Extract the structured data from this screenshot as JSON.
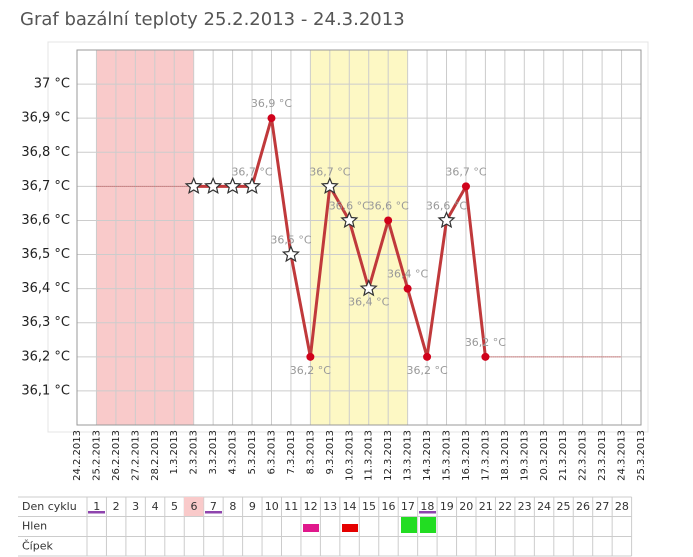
{
  "chart_data": {
    "type": "line",
    "title": "Graf bazální teploty 25.2.2013 - 24.3.2013",
    "categories": [
      "24.2.2013",
      "25.2.2013",
      "26.2.2013",
      "27.2.2013",
      "28.2.2013",
      "1.3.2013",
      "2.3.2013",
      "3.3.2013",
      "4.3.2013",
      "5.3.2013",
      "6.3.2013",
      "7.3.2013",
      "8.3.2013",
      "9.3.2013",
      "10.3.2013",
      "11.3.2013",
      "12.3.2013",
      "13.3.2013",
      "14.3.2013",
      "15.3.2013",
      "16.3.2013",
      "17.3.2013",
      "18.3.2013",
      "19.3.2013",
      "20.3.2013",
      "21.3.2013",
      "22.3.2013",
      "23.3.2013",
      "24.3.2013",
      "25.3.2013"
    ],
    "series": [
      {
        "color": "#c0393b",
        "values": [
          null,
          null,
          null,
          null,
          null,
          null,
          36.7,
          36.7,
          36.7,
          36.7,
          36.9,
          36.5,
          36.2,
          36.7,
          36.6,
          36.4,
          36.6,
          36.4,
          36.2,
          36.6,
          36.7,
          36.2,
          null,
          null,
          null,
          null,
          null,
          null,
          null,
          null
        ],
        "value_labels": [
          null,
          null,
          null,
          null,
          null,
          null,
          null,
          null,
          null,
          "36,7 °C",
          "36,9 °C",
          "36,5 °C",
          "36,2 °C",
          "36,7 °C",
          "36,6 °C",
          "36,4 °C",
          "36,6 °C",
          "36,4 °C",
          "36,2 °C",
          "36,6 °C",
          "36,7 °C",
          "36,2 °C",
          null,
          null,
          null,
          null,
          null,
          null,
          null,
          null
        ],
        "markers": [
          null,
          null,
          null,
          null,
          null,
          null,
          "star",
          "star",
          "star",
          "star",
          "dot",
          "star",
          "dot",
          "star",
          "star",
          "star",
          "dot",
          "dot",
          "dot",
          "star",
          "dot",
          "dot",
          null,
          null,
          null,
          null,
          null,
          null,
          null,
          null
        ]
      }
    ],
    "bands": [
      {
        "from": "25.2.2013",
        "to": "2.3.2013",
        "color": "#f9caca"
      },
      {
        "from": "8.3.2013",
        "to": "13.3.2013",
        "color": "#fdf8c4"
      }
    ],
    "ylim": [
      36.0,
      37.1
    ],
    "yticks": [
      {
        "value": 36.1,
        "label": "36,1 °C"
      },
      {
        "value": 36.2,
        "label": "36,2 °C"
      },
      {
        "value": 36.3,
        "label": "36,3 °C"
      },
      {
        "value": 36.4,
        "label": "36,4 °C"
      },
      {
        "value": 36.5,
        "label": "36,5 °C"
      },
      {
        "value": 36.6,
        "label": "36,6 °C"
      },
      {
        "value": 36.7,
        "label": "36,7 °C"
      },
      {
        "value": 36.8,
        "label": "36,8 °C"
      },
      {
        "value": 36.9,
        "label": "36,9 °C"
      },
      {
        "value": 37.0,
        "label": "37 °C"
      }
    ],
    "grid": true
  },
  "cycle_table": {
    "row_labels": [
      "Den cyklu",
      "Hlen",
      "Čípek"
    ],
    "days": [
      1,
      2,
      3,
      4,
      5,
      6,
      7,
      8,
      9,
      10,
      11,
      12,
      13,
      14,
      15,
      16,
      17,
      18,
      19,
      20,
      21,
      22,
      23,
      24,
      25,
      26,
      27,
      28
    ]
  }
}
